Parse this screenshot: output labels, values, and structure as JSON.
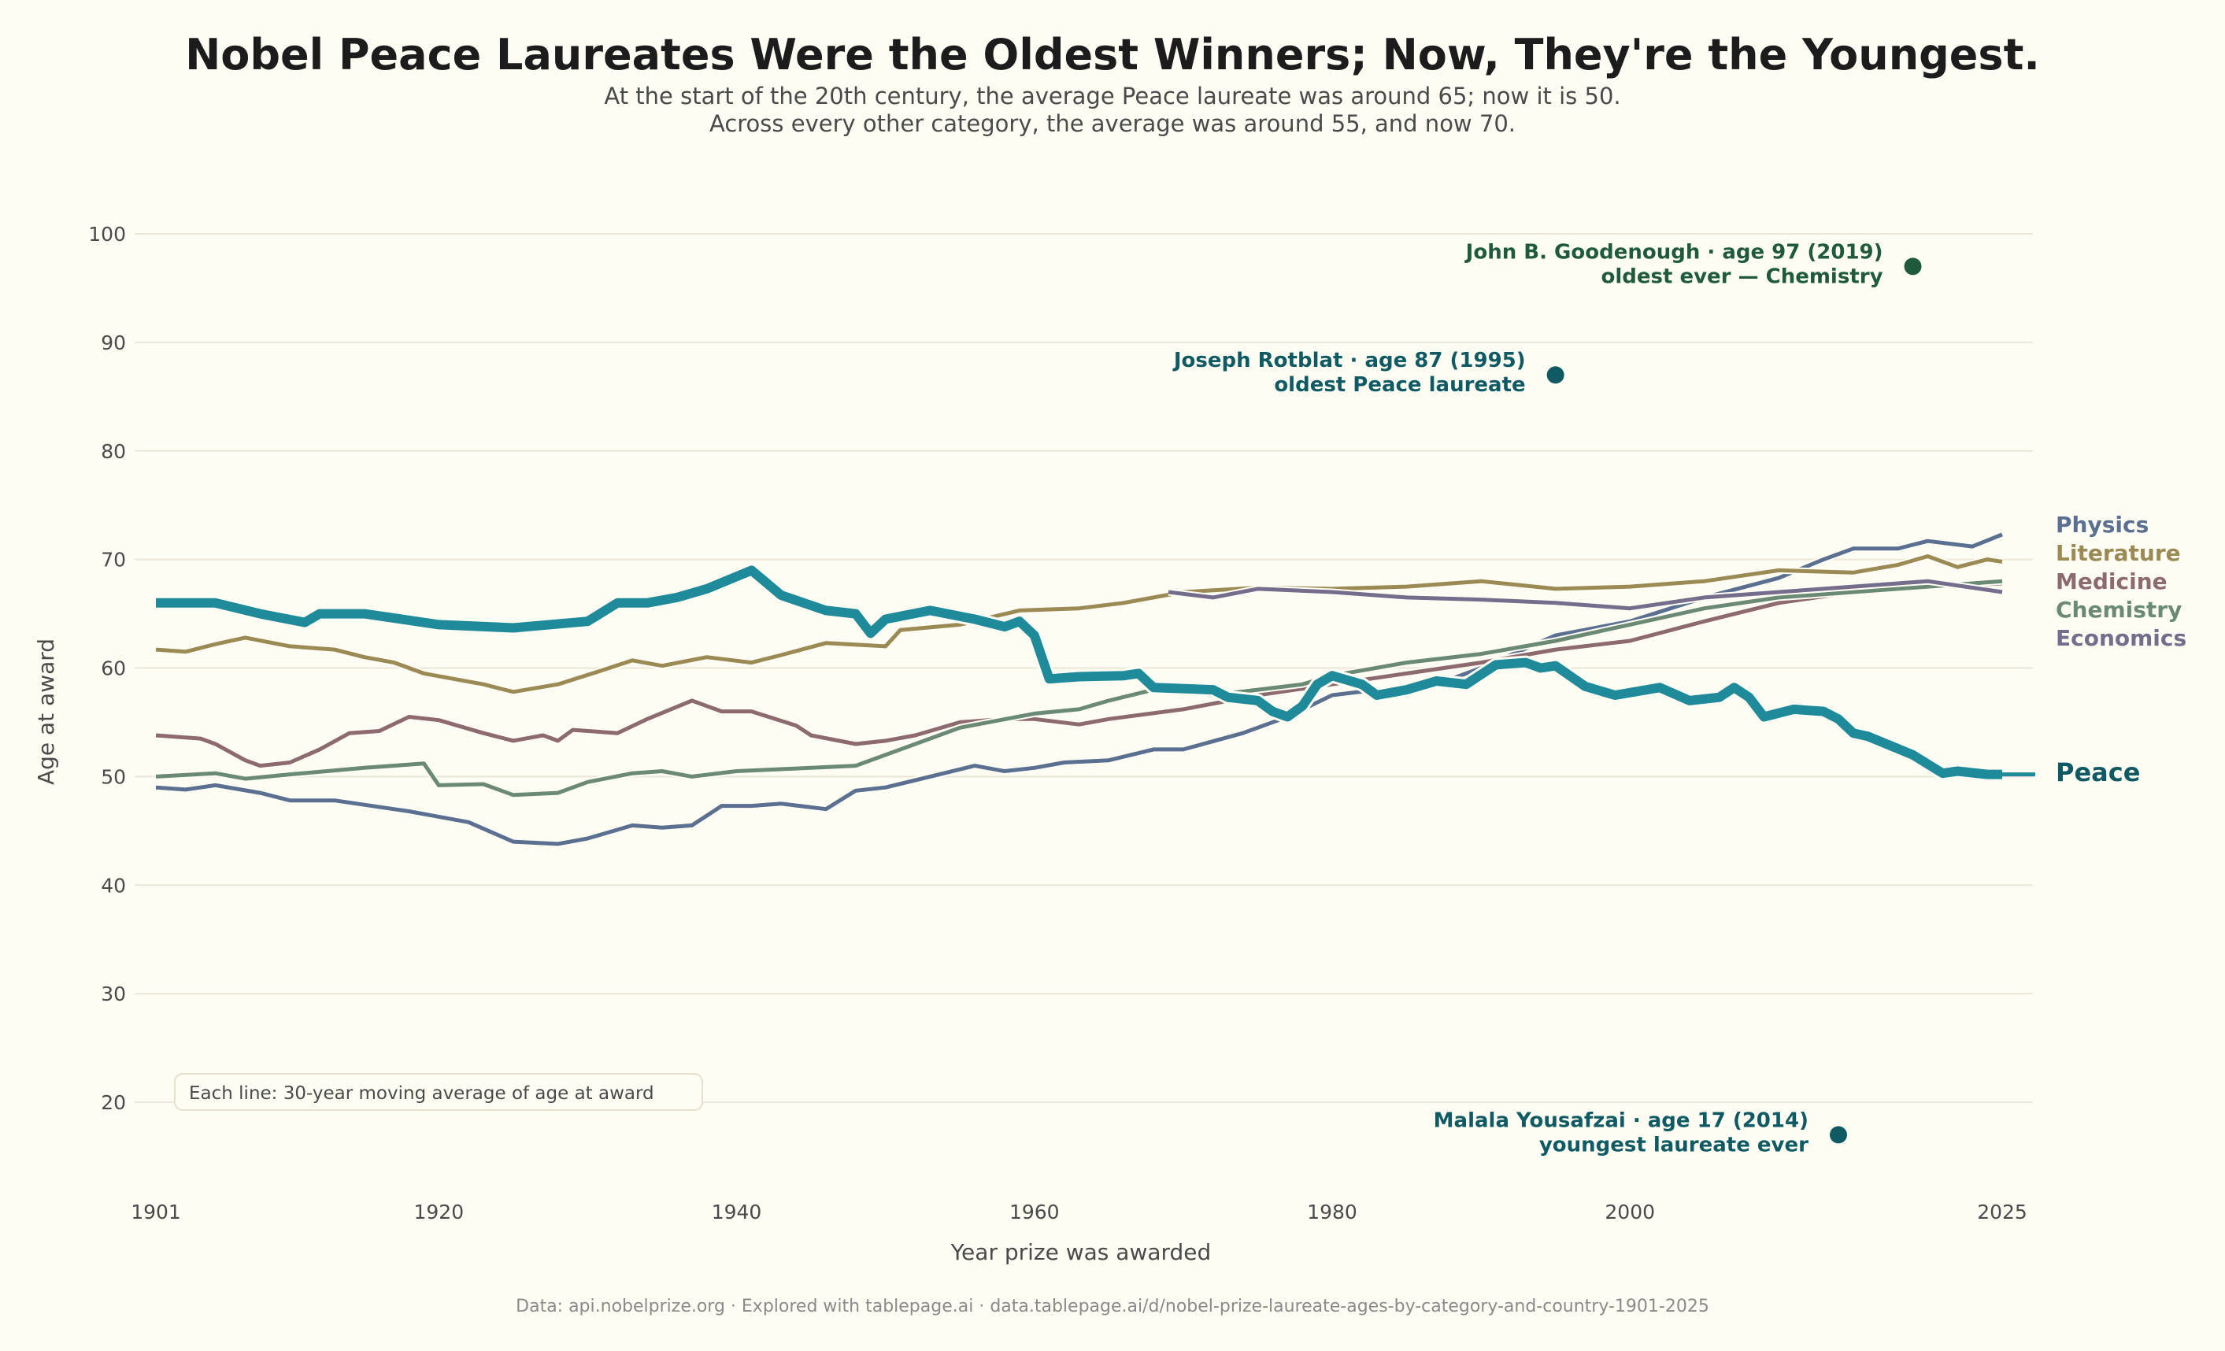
{
  "chart_data": {
    "type": "line",
    "title": "Nobel Peace Laureates Were the Oldest Winners; Now, They're the Youngest.",
    "subtitle_lines": [
      "At the start of the 20th century, the average Peace laureate was around 65; now it is 50.",
      "Across every other category, the average was around 55, and now 70."
    ],
    "xlabel": "Year prize was awarded",
    "ylabel": "Age at award",
    "xlim": [
      1901,
      2025
    ],
    "ylim": [
      20,
      100
    ],
    "x_ticks": [
      1901,
      1920,
      1940,
      1960,
      1980,
      2000,
      2025
    ],
    "y_ticks": [
      20,
      30,
      40,
      50,
      60,
      70,
      80,
      90,
      100
    ],
    "grid": "horizontal",
    "legend_placement": "right, direct labels",
    "note": "Each line: 30-year moving average of age at award",
    "footer": "Data: api.nobelprize.org  ·  Explored with tablepage.ai  ·  data.tablepage.ai/d/nobel-prize-laureate-ages-by-category-and-country-1901-2025",
    "series": [
      {
        "name": "Physics",
        "color": "#5b7090",
        "label_color": "#5b7090",
        "points": [
          [
            1901,
            49
          ],
          [
            1903,
            48.8
          ],
          [
            1905,
            49.2
          ],
          [
            1908,
            48.5
          ],
          [
            1910,
            47.8
          ],
          [
            1913,
            47.8
          ],
          [
            1918,
            46.8
          ],
          [
            1920,
            46.3
          ],
          [
            1922,
            45.8
          ],
          [
            1925,
            44
          ],
          [
            1928,
            43.8
          ],
          [
            1930,
            44.3
          ],
          [
            1933,
            45.5
          ],
          [
            1935,
            45.3
          ],
          [
            1937,
            45.5
          ],
          [
            1939,
            47.3
          ],
          [
            1941,
            47.3
          ],
          [
            1943,
            47.5
          ],
          [
            1946,
            47
          ],
          [
            1948,
            48.7
          ],
          [
            1950,
            49
          ],
          [
            1953,
            50
          ],
          [
            1956,
            51
          ],
          [
            1958,
            50.5
          ],
          [
            1960,
            50.8
          ],
          [
            1962,
            51.3
          ],
          [
            1965,
            51.5
          ],
          [
            1968,
            52.5
          ],
          [
            1970,
            52.5
          ],
          [
            1974,
            54
          ],
          [
            1977,
            55.5
          ],
          [
            1980,
            57.5
          ],
          [
            1983,
            58
          ],
          [
            1985,
            57.5
          ],
          [
            1990,
            60
          ],
          [
            1995,
            63
          ],
          [
            2000,
            64.3
          ],
          [
            2005,
            66.5
          ],
          [
            2010,
            68.3
          ],
          [
            2013,
            70
          ],
          [
            2015,
            71
          ],
          [
            2018,
            71
          ],
          [
            2020,
            71.7
          ],
          [
            2023,
            71.2
          ],
          [
            2025,
            72.3
          ]
        ]
      },
      {
        "name": "Literature",
        "color": "#9c8a55",
        "label_color": "#9c8a55",
        "points": [
          [
            1901,
            61.7
          ],
          [
            1903,
            61.5
          ],
          [
            1905,
            62.2
          ],
          [
            1907,
            62.8
          ],
          [
            1910,
            62
          ],
          [
            1913,
            61.7
          ],
          [
            1915,
            61
          ],
          [
            1917,
            60.5
          ],
          [
            1919,
            59.5
          ],
          [
            1921,
            59
          ],
          [
            1923,
            58.5
          ],
          [
            1925,
            57.8
          ],
          [
            1928,
            58.5
          ],
          [
            1931,
            59.8
          ],
          [
            1933,
            60.7
          ],
          [
            1935,
            60.2
          ],
          [
            1938,
            61
          ],
          [
            1941,
            60.5
          ],
          [
            1943,
            61.2
          ],
          [
            1946,
            62.3
          ],
          [
            1950,
            62
          ],
          [
            1951,
            63.5
          ],
          [
            1955,
            64
          ],
          [
            1959,
            65.3
          ],
          [
            1963,
            65.5
          ],
          [
            1966,
            66
          ],
          [
            1970,
            67
          ],
          [
            1975,
            67.4
          ],
          [
            1980,
            67.3
          ],
          [
            1985,
            67.5
          ],
          [
            1990,
            68
          ],
          [
            1995,
            67.3
          ],
          [
            2000,
            67.5
          ],
          [
            2005,
            68
          ],
          [
            2010,
            69
          ],
          [
            2015,
            68.8
          ],
          [
            2018,
            69.5
          ],
          [
            2020,
            70.3
          ],
          [
            2022,
            69.3
          ],
          [
            2024,
            70
          ],
          [
            2025,
            69.8
          ]
        ]
      },
      {
        "name": "Medicine",
        "color": "#8c6a6e",
        "label_color": "#8c6a6e",
        "points": [
          [
            1901,
            53.8
          ],
          [
            1904,
            53.5
          ],
          [
            1905,
            53
          ],
          [
            1907,
            51.5
          ],
          [
            1908,
            51
          ],
          [
            1910,
            51.3
          ],
          [
            1912,
            52.5
          ],
          [
            1914,
            54
          ],
          [
            1916,
            54.2
          ],
          [
            1918,
            55.5
          ],
          [
            1920,
            55.2
          ],
          [
            1923,
            54
          ],
          [
            1925,
            53.3
          ],
          [
            1927,
            53.8
          ],
          [
            1928,
            53.3
          ],
          [
            1929,
            54.3
          ],
          [
            1932,
            54
          ],
          [
            1934,
            55.3
          ],
          [
            1937,
            57
          ],
          [
            1939,
            56
          ],
          [
            1941,
            56
          ],
          [
            1944,
            54.7
          ],
          [
            1945,
            53.8
          ],
          [
            1948,
            53
          ],
          [
            1950,
            53.3
          ],
          [
            1952,
            53.8
          ],
          [
            1955,
            55
          ],
          [
            1958,
            55.3
          ],
          [
            1960,
            55.3
          ],
          [
            1963,
            54.8
          ],
          [
            1965,
            55.3
          ],
          [
            1970,
            56.2
          ],
          [
            1975,
            57.5
          ],
          [
            1980,
            58.5
          ],
          [
            1985,
            59.5
          ],
          [
            1990,
            60.5
          ],
          [
            1995,
            61.7
          ],
          [
            2000,
            62.5
          ],
          [
            2005,
            64.3
          ],
          [
            2010,
            66
          ],
          [
            2015,
            67
          ],
          [
            2020,
            67.5
          ],
          [
            2025,
            67.8
          ]
        ]
      },
      {
        "name": "Chemistry",
        "color": "#6b8a74",
        "label_color": "#6b8a74",
        "points": [
          [
            1901,
            50
          ],
          [
            1905,
            50.3
          ],
          [
            1907,
            49.8
          ],
          [
            1910,
            50.2
          ],
          [
            1915,
            50.8
          ],
          [
            1919,
            51.2
          ],
          [
            1920,
            49.2
          ],
          [
            1923,
            49.3
          ],
          [
            1925,
            48.3
          ],
          [
            1928,
            48.5
          ],
          [
            1930,
            49.5
          ],
          [
            1933,
            50.3
          ],
          [
            1935,
            50.5
          ],
          [
            1937,
            50
          ],
          [
            1940,
            50.5
          ],
          [
            1945,
            50.8
          ],
          [
            1948,
            51
          ],
          [
            1952,
            53
          ],
          [
            1955,
            54.5
          ],
          [
            1960,
            55.8
          ],
          [
            1963,
            56.2
          ],
          [
            1965,
            57
          ],
          [
            1968,
            58
          ],
          [
            1972,
            57.5
          ],
          [
            1975,
            58
          ],
          [
            1978,
            58.5
          ],
          [
            1980,
            59.3
          ],
          [
            1985,
            60.5
          ],
          [
            1990,
            61.3
          ],
          [
            1995,
            62.5
          ],
          [
            2000,
            64
          ],
          [
            2005,
            65.5
          ],
          [
            2010,
            66.5
          ],
          [
            2015,
            67
          ],
          [
            2020,
            67.5
          ],
          [
            2025,
            68
          ]
        ]
      },
      {
        "name": "Economics",
        "color": "#766c8c",
        "label_color": "#766c8c",
        "points": [
          [
            1969,
            67
          ],
          [
            1972,
            66.5
          ],
          [
            1975,
            67.3
          ],
          [
            1980,
            67
          ],
          [
            1985,
            66.5
          ],
          [
            1990,
            66.3
          ],
          [
            1995,
            66
          ],
          [
            2000,
            65.5
          ],
          [
            2005,
            66.5
          ],
          [
            2010,
            67
          ],
          [
            2015,
            67.5
          ],
          [
            2020,
            68
          ],
          [
            2025,
            67
          ]
        ]
      },
      {
        "name": "Peace",
        "color": "#1e8a9a",
        "label_color": "#0f5a63",
        "emphasis": true,
        "points": [
          [
            1901,
            66
          ],
          [
            1905,
            66
          ],
          [
            1908,
            65
          ],
          [
            1911,
            64.2
          ],
          [
            1912,
            65
          ],
          [
            1915,
            65
          ],
          [
            1920,
            64
          ],
          [
            1925,
            63.7
          ],
          [
            1930,
            64.3
          ],
          [
            1932,
            66
          ],
          [
            1934,
            66
          ],
          [
            1936,
            66.5
          ],
          [
            1938,
            67.3
          ],
          [
            1941,
            69
          ],
          [
            1943,
            66.7
          ],
          [
            1946,
            65.3
          ],
          [
            1948,
            65
          ],
          [
            1949,
            63.2
          ],
          [
            1950,
            64.5
          ],
          [
            1953,
            65.3
          ],
          [
            1956,
            64.5
          ],
          [
            1958,
            63.8
          ],
          [
            1959,
            64.3
          ],
          [
            1960,
            63
          ],
          [
            1961,
            59
          ],
          [
            1963,
            59.2
          ],
          [
            1966,
            59.3
          ],
          [
            1967,
            59.5
          ],
          [
            1968,
            58.2
          ],
          [
            1972,
            58
          ],
          [
            1973,
            57.3
          ],
          [
            1975,
            57
          ],
          [
            1976,
            56
          ],
          [
            1977,
            55.5
          ],
          [
            1978,
            56.5
          ],
          [
            1979,
            58.5
          ],
          [
            1980,
            59.3
          ],
          [
            1982,
            58.5
          ],
          [
            1983,
            57.5
          ],
          [
            1985,
            58
          ],
          [
            1987,
            58.8
          ],
          [
            1989,
            58.5
          ],
          [
            1991,
            60.3
          ],
          [
            1993,
            60.5
          ],
          [
            1994,
            60
          ],
          [
            1995,
            60.2
          ],
          [
            1997,
            58.3
          ],
          [
            1999,
            57.5
          ],
          [
            2002,
            58.2
          ],
          [
            2004,
            57
          ],
          [
            2006,
            57.3
          ],
          [
            2007,
            58.2
          ],
          [
            2008,
            57.3
          ],
          [
            2009,
            55.5
          ],
          [
            2011,
            56.2
          ],
          [
            2013,
            56
          ],
          [
            2014,
            55.3
          ],
          [
            2015,
            54
          ],
          [
            2016,
            53.7
          ],
          [
            2019,
            52
          ],
          [
            2021,
            50.3
          ],
          [
            2022,
            50.5
          ],
          [
            2024,
            50.2
          ],
          [
            2025,
            50.2
          ]
        ]
      }
    ],
    "annotations": [
      {
        "year": 2019,
        "age": 97,
        "color": "#1f5a3a",
        "line1": "John B. Goodenough · age 97 (2019)",
        "line2": "oldest ever — Chemistry"
      },
      {
        "year": 1995,
        "age": 87,
        "color": "#0f5a63",
        "line1": "Joseph Rotblat · age 87 (1995)",
        "line2": "oldest Peace laureate"
      },
      {
        "year": 2014,
        "age": 17,
        "color": "#0f5a63",
        "line1": "Malala Yousafzai · age 17 (2014)",
        "line2": "youngest laureate ever"
      }
    ]
  }
}
